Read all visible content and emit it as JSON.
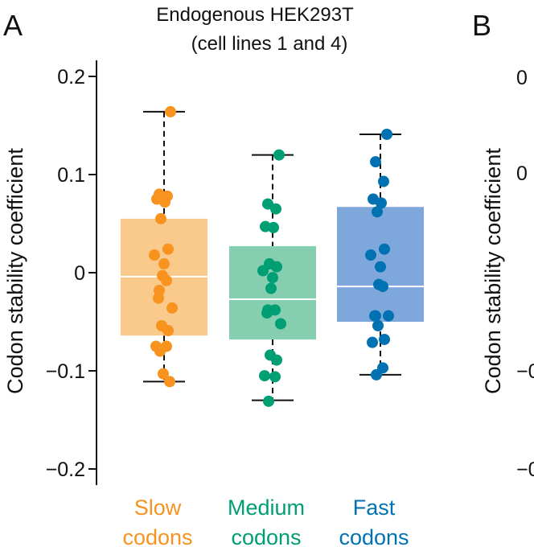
{
  "panel_a": {
    "letter": "A",
    "title_line1": "Endogenous HEK293T",
    "title_line2": "(cell lines 1 and 4)"
  },
  "panel_b": {
    "letter": "B",
    "ylabel": "Codon stability coefficient",
    "tick_labels_partial": [
      "0",
      "0",
      "−0",
      "−0"
    ]
  },
  "chart_data": [
    {
      "type": "box",
      "title": "Endogenous HEK293T (cell lines 1 and 4)",
      "xlabel": "",
      "ylabel": "Codon stability coefficient",
      "ylim": [
        -0.215,
        0.2
      ],
      "yticks": [
        0.2,
        0.1,
        0,
        -0.1,
        -0.2
      ],
      "ytick_labels": [
        "0.2",
        "0.1",
        "0",
        "−0.1",
        "−0.2"
      ],
      "grid": false,
      "categories": [
        {
          "line1": "Slow",
          "line2": "codons",
          "color": "#f7931e",
          "box_color": "#fac98c",
          "q1": -0.064,
          "median": -0.004,
          "q3": 0.055,
          "whisker_low": -0.111,
          "whisker_high": 0.164,
          "points": [
            0.164,
            0.08,
            0.078,
            0.075,
            0.072,
            0.055,
            0.024,
            0.018,
            0.009,
            -0.003,
            -0.008,
            -0.018,
            -0.026,
            -0.036,
            -0.054,
            -0.059,
            -0.075,
            -0.075,
            -0.08,
            -0.103,
            -0.111
          ]
        },
        {
          "line1": "Medium",
          "line2": "codons",
          "color": "#009e73",
          "box_color": "#85cfb0",
          "q1": -0.068,
          "median": -0.027,
          "q3": 0.027,
          "whisker_low": -0.13,
          "whisker_high": 0.12,
          "points": [
            0.12,
            0.07,
            0.065,
            0.047,
            0.046,
            0.009,
            0.006,
            0.002,
            -0.005,
            -0.016,
            -0.038,
            -0.038,
            -0.041,
            -0.052,
            -0.084,
            -0.089,
            -0.105,
            -0.106,
            -0.131
          ]
        },
        {
          "line1": "Fast",
          "line2": "codons",
          "color": "#0072b2",
          "box_color": "#7ea7dc",
          "q1": -0.05,
          "median": -0.014,
          "q3": 0.067,
          "whisker_low": -0.104,
          "whisker_high": 0.141,
          "points": [
            0.141,
            0.113,
            0.093,
            0.075,
            0.071,
            0.062,
            0.024,
            0.018,
            0.006,
            -0.012,
            -0.014,
            -0.044,
            -0.044,
            -0.044,
            -0.054,
            -0.068,
            -0.071,
            -0.097,
            -0.104
          ]
        }
      ]
    }
  ]
}
